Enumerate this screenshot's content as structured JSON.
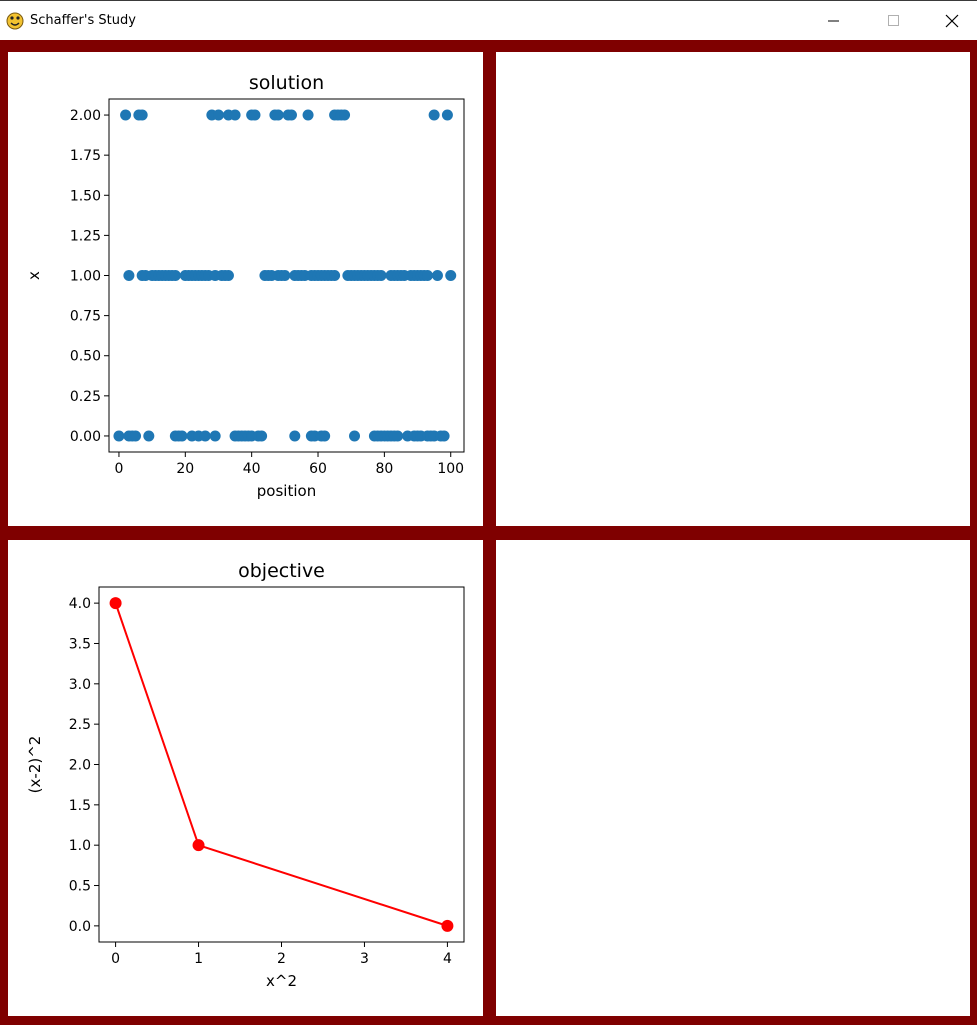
{
  "window": {
    "title": "Schaffer's Study"
  },
  "window_controls": {
    "minimize": "—",
    "maximize": "☐",
    "close": "✕"
  },
  "colors": {
    "frame": "#7f0000",
    "scatter": "#1f77b4",
    "line": "#ff0000"
  },
  "chart_data": [
    {
      "type": "scatter",
      "title": "solution",
      "xlabel": "position",
      "ylabel": "x",
      "xlim": [
        -3,
        104
      ],
      "ylim": [
        -0.1,
        2.1
      ],
      "xticks": [
        0,
        20,
        40,
        60,
        80,
        100
      ],
      "yticks": [
        0.0,
        0.25,
        0.5,
        0.75,
        1.0,
        1.25,
        1.5,
        1.75,
        2.0
      ],
      "xtick_labels": [
        "0",
        "20",
        "40",
        "60",
        "80",
        "100"
      ],
      "ytick_labels": [
        "0.00",
        "0.25",
        "0.50",
        "0.75",
        "1.00",
        "1.25",
        "1.50",
        "1.75",
        "2.00"
      ],
      "series": [
        {
          "x": [
            2,
            6,
            7,
            28,
            30,
            33,
            35,
            40,
            41,
            47,
            48,
            51,
            52,
            57,
            65,
            66,
            67,
            68,
            95,
            99,
            3,
            7,
            8,
            10,
            11,
            12,
            13,
            14,
            15,
            16,
            17,
            20,
            21,
            22,
            23,
            24,
            25,
            26,
            27,
            29,
            31,
            32,
            33,
            44,
            45,
            46,
            48,
            49,
            50,
            53,
            54,
            55,
            56,
            58,
            59,
            60,
            61,
            62,
            63,
            64,
            65,
            69,
            70,
            71,
            72,
            73,
            74,
            75,
            76,
            77,
            78,
            79,
            82,
            83,
            84,
            85,
            86,
            88,
            89,
            90,
            91,
            92,
            93,
            96,
            100,
            0,
            3,
            4,
            5,
            9,
            17,
            18,
            19,
            22,
            24,
            26,
            29,
            35,
            36,
            37,
            38,
            39,
            40,
            42,
            43,
            53,
            58,
            59,
            61,
            62,
            71,
            77,
            78,
            79,
            80,
            81,
            82,
            83,
            84,
            87,
            89,
            90,
            91,
            93,
            94,
            95,
            97,
            98
          ],
          "y": [
            2,
            2,
            2,
            2,
            2,
            2,
            2,
            2,
            2,
            2,
            2,
            2,
            2,
            2,
            2,
            2,
            2,
            2,
            2,
            2,
            1,
            1,
            1,
            1,
            1,
            1,
            1,
            1,
            1,
            1,
            1,
            1,
            1,
            1,
            1,
            1,
            1,
            1,
            1,
            1,
            1,
            1,
            1,
            1,
            1,
            1,
            1,
            1,
            1,
            1,
            1,
            1,
            1,
            1,
            1,
            1,
            1,
            1,
            1,
            1,
            1,
            1,
            1,
            1,
            1,
            1,
            1,
            1,
            1,
            1,
            1,
            1,
            1,
            1,
            1,
            1,
            1,
            1,
            1,
            1,
            1,
            1,
            1,
            1,
            1,
            0,
            0,
            0,
            0,
            0,
            0,
            0,
            0,
            0,
            0,
            0,
            0,
            0,
            0,
            0,
            0,
            0,
            0,
            0,
            0,
            0,
            0,
            0,
            0,
            0,
            0,
            0,
            0,
            0,
            0,
            0,
            0,
            0,
            0,
            0,
            0,
            0,
            0,
            0,
            0,
            0,
            0,
            0
          ]
        }
      ]
    },
    {
      "type": "line",
      "title": "objective",
      "xlabel": "x^2",
      "ylabel": "(x-2)^2",
      "xlim": [
        -0.2,
        4.2
      ],
      "ylim": [
        -0.2,
        4.2
      ],
      "xticks": [
        0,
        1,
        2,
        3,
        4
      ],
      "yticks": [
        0.0,
        0.5,
        1.0,
        1.5,
        2.0,
        2.5,
        3.0,
        3.5,
        4.0
      ],
      "xtick_labels": [
        "0",
        "1",
        "2",
        "3",
        "4"
      ],
      "ytick_labels": [
        "0.0",
        "0.5",
        "1.0",
        "1.5",
        "2.0",
        "2.5",
        "3.0",
        "3.5",
        "4.0"
      ],
      "series": [
        {
          "x": [
            0,
            1,
            4
          ],
          "y": [
            4,
            1,
            0
          ]
        }
      ]
    }
  ]
}
